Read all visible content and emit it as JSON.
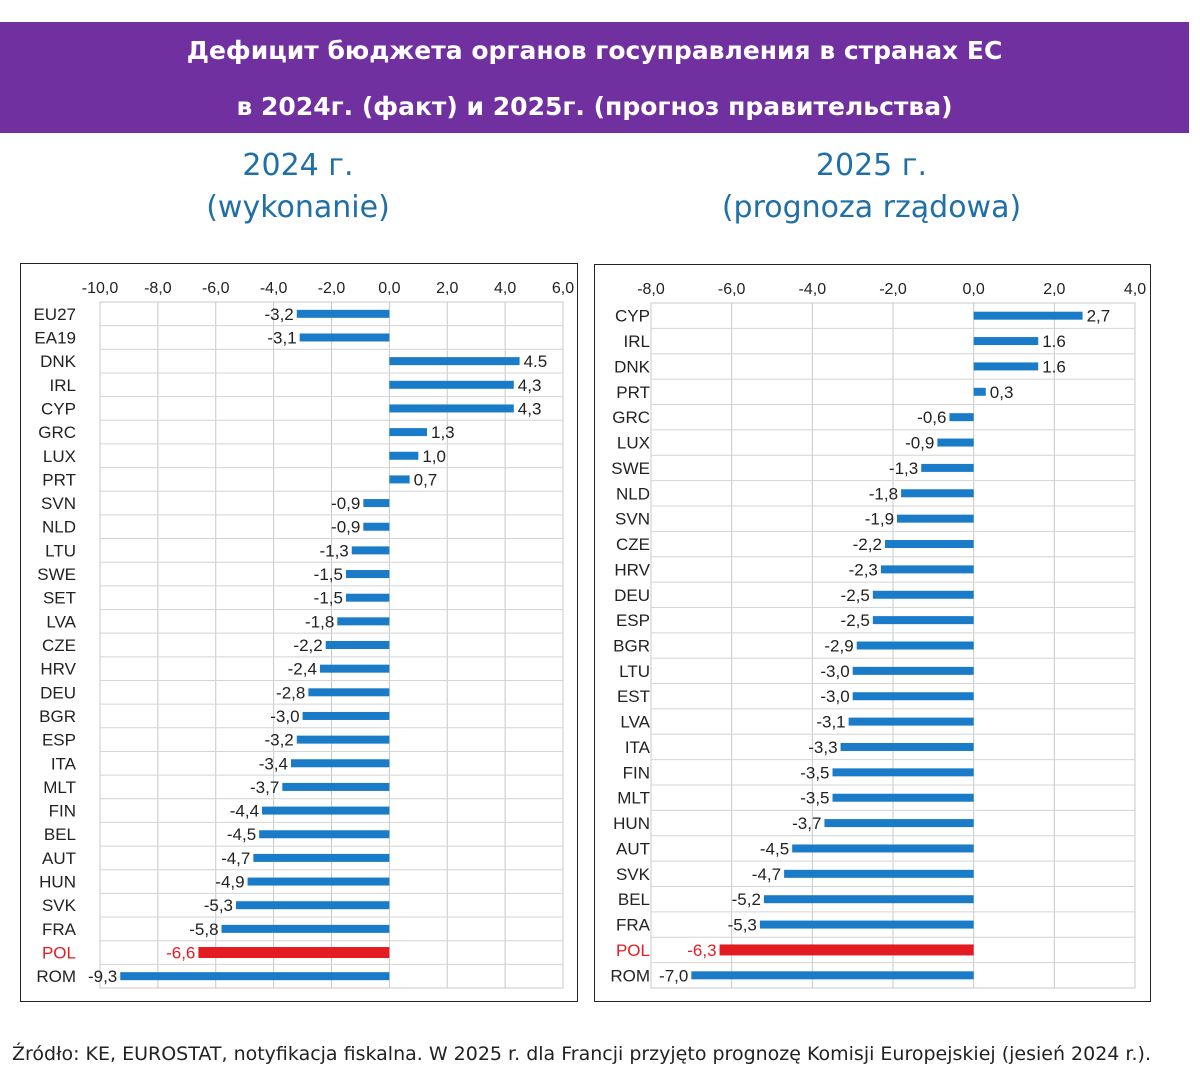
{
  "header": {
    "line1": "Дефицит бюджета органов госуправления в странах ЕС",
    "line2": "в 2024г. (факт) и 2025г. (прогноз правительства)"
  },
  "panel_titles": {
    "left_year": "2024 г.",
    "left_sub": "(wykonanie)",
    "right_year": "2025 г.",
    "right_sub": "(prognoza rządowa)"
  },
  "source": "Źródło: KE, EUROSTAT, notyfikacja fiskalna. W 2025 r. dla Francji przyjęto prognozę Komisji Europejskiej (jesień 2024 r.).",
  "colors": {
    "bar": "#1a7cc9",
    "highlight": "#e31b23",
    "banner": "#7030a0",
    "title": "#1f6fa8"
  },
  "chart_data": [
    {
      "type": "bar",
      "orientation": "horizontal",
      "xlim": [
        -10,
        6
      ],
      "ticks": [
        "-10,0",
        "-8,0",
        "-6,0",
        "-4,0",
        "-2,0",
        "0,0",
        "2,0",
        "4,0",
        "6,0"
      ],
      "tick_values": [
        -10,
        -8,
        -6,
        -4,
        -2,
        0,
        2,
        4,
        6
      ],
      "grid": true,
      "categories": [
        "EU27",
        "EA19",
        "DNK",
        "IRL",
        "CYP",
        "GRC",
        "LUX",
        "PRT",
        "SVN",
        "NLD",
        "LTU",
        "SWE",
        "SET",
        "LVA",
        "CZE",
        "HRV",
        "DEU",
        "BGR",
        "ESP",
        "ITA",
        "MLT",
        "FIN",
        "BEL",
        "AUT",
        "HUN",
        "SVK",
        "FRA",
        "POL",
        "ROM"
      ],
      "values": [
        -3.2,
        -3.1,
        4.5,
        4.3,
        4.3,
        1.3,
        1.0,
        0.7,
        -0.9,
        -0.9,
        -1.3,
        -1.5,
        -1.5,
        -1.8,
        -2.2,
        -2.4,
        -2.8,
        -3.0,
        -3.2,
        -3.4,
        -3.7,
        -4.4,
        -4.5,
        -4.7,
        -4.9,
        -5.3,
        -5.8,
        -6.6,
        -9.3
      ],
      "labels": [
        "-3,2",
        "-3,1",
        "4.5",
        "4,3",
        "4,3",
        "1,3",
        "1,0",
        "0,7",
        "-0,9",
        "-0,9",
        "-1,3",
        "-1,5",
        "-1,5",
        "-1,8",
        "-2,2",
        "-2,4",
        "-2,8",
        "-3,0",
        "-3,2",
        "-3,4",
        "-3,7",
        "-4,4",
        "-4,5",
        "-4,7",
        "-4,9",
        "-5,3",
        "-5,8",
        "-6,6",
        "-9,3"
      ],
      "highlight": "POL"
    },
    {
      "type": "bar",
      "orientation": "horizontal",
      "xlim": [
        -8,
        4
      ],
      "ticks": [
        "-8,0",
        "-6,0",
        "-4,0",
        "-2,0",
        "0,0",
        "2,0",
        "4,0"
      ],
      "tick_values": [
        -8,
        -6,
        -4,
        -2,
        0,
        2,
        4
      ],
      "grid": true,
      "categories": [
        "CYP",
        "IRL",
        "DNK",
        "PRT",
        "GRC",
        "LUX",
        "SWE",
        "NLD",
        "SVN",
        "CZE",
        "HRV",
        "DEU",
        "ESP",
        "BGR",
        "LTU",
        "EST",
        "LVA",
        "ITA",
        "FIN",
        "MLT",
        "HUN",
        "AUT",
        "SVK",
        "BEL",
        "FRA",
        "POL",
        "ROM"
      ],
      "values": [
        2.7,
        1.6,
        1.6,
        0.3,
        -0.6,
        -0.9,
        -1.3,
        -1.8,
        -1.9,
        -2.2,
        -2.3,
        -2.5,
        -2.5,
        -2.9,
        -3.0,
        -3.0,
        -3.1,
        -3.3,
        -3.5,
        -3.5,
        -3.7,
        -4.5,
        -4.7,
        -5.2,
        -5.3,
        -6.3,
        -7.0
      ],
      "labels": [
        "2,7",
        "1.6",
        "1.6",
        "0,3",
        "-0,6",
        "-0,9",
        "-1,3",
        "-1,8",
        "-1,9",
        "-2,2",
        "-2,3",
        "-2,5",
        "-2,5",
        "-2,9",
        "-3,0",
        "-3,0",
        "-3,1",
        "-3,3",
        "-3,5",
        "-3,5",
        "-3,7",
        "-4,5",
        "-4,7",
        "-5,2",
        "-5,3",
        "-6,3",
        "-7,0"
      ],
      "highlight": "POL"
    }
  ]
}
